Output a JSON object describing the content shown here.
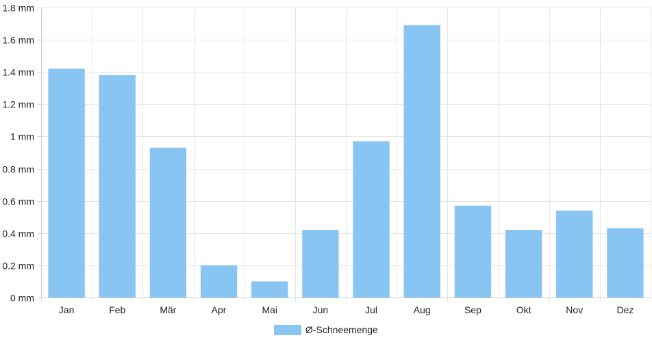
{
  "chart_data": {
    "type": "bar",
    "categories": [
      "Jan",
      "Feb",
      "Mär",
      "Apr",
      "Mai",
      "Jun",
      "Jul",
      "Aug",
      "Sep",
      "Okt",
      "Nov",
      "Dez"
    ],
    "series": [
      {
        "name": "Ø-Schneemenge",
        "values": [
          1.42,
          1.38,
          0.93,
          0.2,
          0.1,
          0.42,
          0.97,
          1.69,
          0.57,
          0.42,
          0.54,
          0.43
        ],
        "color": "#88c5f2"
      }
    ],
    "y_unit": "mm",
    "ylim": [
      0,
      1.8
    ],
    "y_ticks": [
      0,
      0.2,
      0.4,
      0.6,
      0.8,
      1,
      1.2,
      1.4,
      1.6,
      1.8
    ],
    "y_tick_labels": [
      "0 mm",
      "0.2 mm",
      "0.4 mm",
      "0.6 mm",
      "0.8 mm",
      "1 mm",
      "1.2 mm",
      "1.4 mm",
      "1.6 mm",
      "1.8 mm"
    ],
    "grid": true,
    "legend_position": "bottom-center",
    "colors": {
      "grid": "#e5e5e5",
      "axis": "#cccccc",
      "text": "#222222"
    }
  }
}
